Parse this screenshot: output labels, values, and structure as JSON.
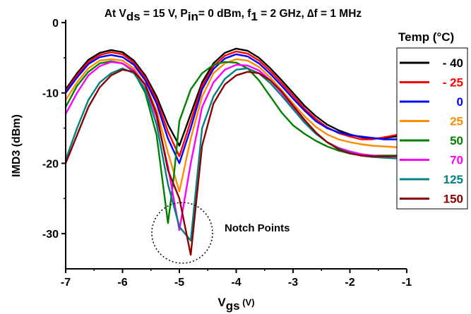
{
  "chart_data": {
    "type": "line",
    "title": {
      "parts": [
        {
          "text": "At V",
          "sub": false
        },
        {
          "text": "ds",
          "sub": true
        },
        {
          "text": " = 15 V, P",
          "sub": false
        },
        {
          "text": "in",
          "sub": true
        },
        {
          "text": "= 0 dBm, f",
          "sub": false
        },
        {
          "text": "1",
          "sub": true
        },
        {
          "text": " = 2 GHz, ∆f = 1 MHz",
          "sub": false
        }
      ]
    },
    "xlabel": {
      "main": "V",
      "sub": "gs",
      "unit": " (V)"
    },
    "ylabel": "IMD3 (dBm)",
    "xlim": [
      -7,
      -1
    ],
    "ylim": [
      -35,
      0
    ],
    "xticks": [
      -7,
      -6,
      -5,
      -4,
      -3,
      -2,
      -1
    ],
    "yticks": [
      0,
      -10,
      -20,
      -30
    ],
    "grid": false,
    "legend": {
      "title": "Temp (°C)",
      "placement": "right"
    },
    "annotation": {
      "text": "Notch Points"
    },
    "series": [
      {
        "name": "- 40",
        "color": "#000000",
        "x": [
          -7,
          -6.8,
          -6.6,
          -6.4,
          -6.2,
          -6.0,
          -5.8,
          -5.6,
          -5.4,
          -5.2,
          -5.0,
          -4.8,
          -4.6,
          -4.4,
          -4.2,
          -4.0,
          -3.8,
          -3.6,
          -3.4,
          -3.2,
          -3.0,
          -2.8,
          -2.6,
          -2.4,
          -2.2,
          -2.0,
          -1.8,
          -1.6,
          -1.4,
          -1.2,
          -1.0
        ],
        "y": [
          -9.5,
          -7.2,
          -5.3,
          -4.3,
          -3.9,
          -4.2,
          -5.4,
          -7.5,
          -10.5,
          -14.5,
          -17.5,
          -13.0,
          -8.5,
          -5.8,
          -4.3,
          -3.7,
          -4.0,
          -5.0,
          -6.5,
          -8.2,
          -10.0,
          -11.8,
          -13.3,
          -14.5,
          -15.3,
          -15.9,
          -16.3,
          -16.5,
          -16.4,
          -16.2,
          -16.0
        ]
      },
      {
        "name": "- 25",
        "color": "#ff0000",
        "x": [
          -7,
          -6.8,
          -6.6,
          -6.4,
          -6.2,
          -6.0,
          -5.8,
          -5.6,
          -5.4,
          -5.2,
          -5.0,
          -4.8,
          -4.6,
          -4.4,
          -4.2,
          -4.0,
          -3.8,
          -3.6,
          -3.4,
          -3.2,
          -3.0,
          -2.8,
          -2.6,
          -2.4,
          -2.2,
          -2.0,
          -1.8,
          -1.6,
          -1.4,
          -1.2,
          -1.0
        ],
        "y": [
          -9.8,
          -7.5,
          -5.6,
          -4.6,
          -4.2,
          -4.5,
          -5.7,
          -7.8,
          -11.0,
          -15.5,
          -19.0,
          -14.0,
          -9.0,
          -6.2,
          -4.7,
          -4.1,
          -4.4,
          -5.4,
          -6.9,
          -8.6,
          -10.4,
          -12.2,
          -13.7,
          -14.9,
          -15.7,
          -16.2,
          -16.6,
          -16.6,
          -16.3,
          -16.0,
          -15.8
        ]
      },
      {
        "name": "0",
        "color": "#0000ff",
        "x": [
          -7,
          -6.8,
          -6.6,
          -6.4,
          -6.2,
          -6.0,
          -5.8,
          -5.6,
          -5.4,
          -5.2,
          -5.0,
          -4.8,
          -4.6,
          -4.4,
          -4.2,
          -4.0,
          -3.8,
          -3.6,
          -3.4,
          -3.2,
          -3.0,
          -2.8,
          -2.6,
          -2.4,
          -2.2,
          -2.0,
          -1.8,
          -1.6,
          -1.4,
          -1.2,
          -1.0
        ],
        "y": [
          -10.0,
          -7.8,
          -5.9,
          -4.9,
          -4.6,
          -4.9,
          -6.0,
          -8.2,
          -11.5,
          -16.5,
          -20.0,
          -15.0,
          -9.5,
          -6.6,
          -5.1,
          -4.5,
          -4.8,
          -5.8,
          -7.3,
          -9.0,
          -10.8,
          -12.5,
          -14.0,
          -15.0,
          -15.6,
          -16.0,
          -16.2,
          -16.4,
          -16.6,
          -16.6,
          -16.5
        ]
      },
      {
        "name": "25",
        "color": "#ff8c00",
        "x": [
          -7,
          -6.8,
          -6.6,
          -6.4,
          -6.2,
          -6.0,
          -5.8,
          -5.6,
          -5.4,
          -5.2,
          -5.0,
          -4.8,
          -4.6,
          -4.4,
          -4.2,
          -4.0,
          -3.8,
          -3.6,
          -3.4,
          -3.2,
          -3.0,
          -2.8,
          -2.6,
          -2.4,
          -2.2,
          -2.0,
          -1.8,
          -1.6,
          -1.4,
          -1.2,
          -1.0
        ],
        "y": [
          -11.0,
          -8.5,
          -6.5,
          -5.4,
          -5.2,
          -5.4,
          -6.5,
          -8.8,
          -12.5,
          -18.5,
          -24.0,
          -16.5,
          -10.5,
          -7.2,
          -5.8,
          -5.2,
          -5.4,
          -6.3,
          -7.8,
          -9.6,
          -11.5,
          -13.3,
          -14.8,
          -15.9,
          -16.6,
          -17.0,
          -17.3,
          -17.5,
          -17.6,
          -17.7,
          -17.7
        ]
      },
      {
        "name": "50",
        "color": "#008000",
        "x": [
          -7,
          -6.8,
          -6.6,
          -6.4,
          -6.2,
          -6.0,
          -5.8,
          -5.6,
          -5.4,
          -5.2,
          -5.1,
          -5.0,
          -4.8,
          -4.6,
          -4.4,
          -4.2,
          -4.0,
          -3.8,
          -3.6,
          -3.4,
          -3.2,
          -3.0,
          -2.8,
          -2.6,
          -2.4,
          -2.2,
          -2.0,
          -1.8,
          -1.6,
          -1.4,
          -1.2,
          -1.0
        ],
        "y": [
          -12.0,
          -9.0,
          -7.0,
          -5.8,
          -5.5,
          -5.8,
          -7.0,
          -10.0,
          -16.0,
          -28.5,
          -22.0,
          -14.0,
          -9.5,
          -7.2,
          -6.0,
          -5.6,
          -5.7,
          -6.5,
          -8.2,
          -10.5,
          -12.8,
          -14.6,
          -15.8,
          -16.8,
          -17.6,
          -18.2,
          -18.6,
          -18.8,
          -18.9,
          -18.9,
          -18.9,
          -18.9
        ]
      },
      {
        "name": "70",
        "color": "#ff00ff",
        "x": [
          -7,
          -6.8,
          -6.6,
          -6.4,
          -6.2,
          -6.0,
          -5.8,
          -5.6,
          -5.4,
          -5.2,
          -5.0,
          -4.8,
          -4.6,
          -4.4,
          -4.2,
          -4.0,
          -3.8,
          -3.6,
          -3.4,
          -3.2,
          -3.0,
          -2.8,
          -2.6,
          -2.4,
          -2.2,
          -2.0,
          -1.8,
          -1.6,
          -1.4,
          -1.2,
          -1.0
        ],
        "y": [
          -13.0,
          -10.0,
          -7.5,
          -6.2,
          -5.6,
          -5.8,
          -6.8,
          -9.0,
          -13.5,
          -20.5,
          -29.5,
          -20.0,
          -12.0,
          -8.5,
          -6.7,
          -6.0,
          -6.1,
          -6.8,
          -8.2,
          -10.0,
          -12.0,
          -14.0,
          -15.7,
          -17.0,
          -17.8,
          -18.3,
          -18.7,
          -18.9,
          -19.0,
          -19.0,
          -19.0
        ]
      },
      {
        "name": "125",
        "color": "#008080",
        "x": [
          -7,
          -6.8,
          -6.6,
          -6.4,
          -6.2,
          -6.0,
          -5.8,
          -5.6,
          -5.4,
          -5.2,
          -5.0,
          -4.8,
          -4.6,
          -4.4,
          -4.2,
          -4.0,
          -3.8,
          -3.6,
          -3.4,
          -3.2,
          -3.0,
          -2.8,
          -2.6,
          -2.4,
          -2.2,
          -2.0,
          -1.8,
          -1.6,
          -1.4,
          -1.2,
          -1.0
        ],
        "y": [
          -19.5,
          -15.0,
          -11.0,
          -8.5,
          -7.2,
          -6.5,
          -7.2,
          -9.5,
          -14.5,
          -23.0,
          -29.0,
          -31.0,
          -15.0,
          -10.5,
          -8.0,
          -6.7,
          -6.5,
          -7.2,
          -8.6,
          -10.4,
          -12.3,
          -14.2,
          -15.8,
          -17.0,
          -17.9,
          -18.5,
          -18.9,
          -19.1,
          -19.2,
          -19.3,
          -19.3
        ]
      },
      {
        "name": "150",
        "color": "#8b0000",
        "x": [
          -7,
          -6.8,
          -6.6,
          -6.4,
          -6.2,
          -6.0,
          -5.8,
          -5.6,
          -5.4,
          -5.2,
          -5.0,
          -4.8,
          -4.6,
          -4.4,
          -4.2,
          -4.0,
          -3.8,
          -3.6,
          -3.4,
          -3.2,
          -3.0,
          -2.8,
          -2.6,
          -2.4,
          -2.2,
          -2.0,
          -1.8,
          -1.6,
          -1.4,
          -1.2,
          -1.0
        ],
        "y": [
          -20.0,
          -16.0,
          -12.0,
          -9.2,
          -7.5,
          -6.7,
          -7.0,
          -8.8,
          -13.0,
          -21.0,
          -25.0,
          -33.0,
          -17.5,
          -11.5,
          -8.8,
          -7.5,
          -7.0,
          -7.2,
          -8.2,
          -9.8,
          -11.8,
          -13.8,
          -15.6,
          -17.0,
          -18.0,
          -18.6,
          -18.9,
          -19.0,
          -19.0,
          -19.0,
          -19.0
        ]
      }
    ]
  }
}
